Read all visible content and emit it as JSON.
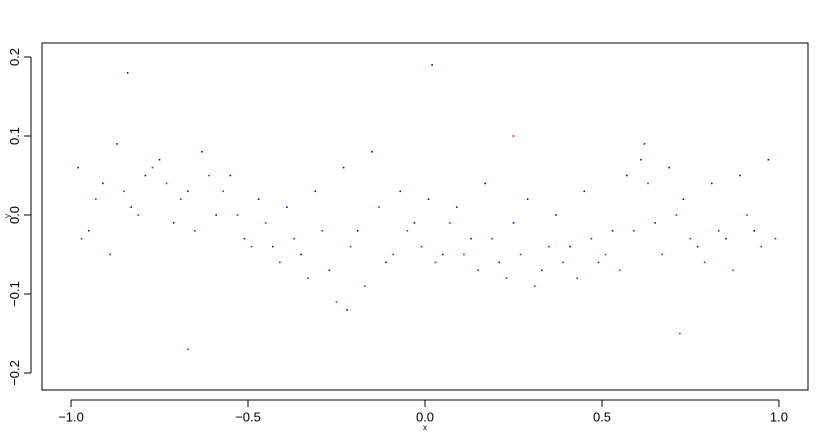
{
  "chart_data": {
    "type": "scatter",
    "xlabel": "x",
    "ylabel": "y",
    "xlim": [
      -1.082,
      1.082
    ],
    "ylim": [
      -0.2215,
      0.2177
    ],
    "xticks": [
      {
        "value": -1,
        "label": "−1.0"
      },
      {
        "value": -0.5,
        "label": "−0.5"
      },
      {
        "value": 0,
        "label": "0.0"
      },
      0.5,
      {
        "value": 1,
        "label": "1.0"
      }
    ],
    "yticks": [
      {
        "value": -0.2,
        "label": "−0.2"
      },
      {
        "value": -0.1,
        "label": "−0.1"
      },
      {
        "value": 0,
        "label": "0.0"
      },
      0.1,
      0.2
    ],
    "series": [
      {
        "color": "#0000ff",
        "x": [
          -0.98,
          -0.95,
          -0.91,
          -0.87,
          -0.83,
          -0.79,
          -0.75,
          -0.71,
          -0.67,
          -0.63,
          -0.59,
          -0.55,
          -0.51,
          -0.47,
          -0.43,
          -0.39,
          -0.35,
          -0.31,
          -0.27,
          -0.23,
          -0.19,
          -0.15,
          -0.11,
          -0.07,
          -0.03,
          0.01,
          0.05,
          0.09,
          0.13,
          0.17,
          0.21,
          0.25,
          0.29,
          0.33,
          0.37,
          0.41,
          0.45,
          0.49,
          0.53,
          0.57,
          0.61,
          0.65,
          0.69,
          0.73,
          0.77,
          0.81,
          0.85,
          0.89,
          0.93,
          0.97,
          -0.84,
          0.02,
          -0.22,
          0.62
        ],
        "values": [
          0.06,
          -0.02,
          0.04,
          0.09,
          0.01,
          0.05,
          0.07,
          -0.01,
          0.03,
          0.08,
          0.0,
          0.05,
          -0.03,
          0.02,
          -0.04,
          0.01,
          -0.05,
          0.03,
          -0.07,
          0.06,
          -0.02,
          0.08,
          -0.06,
          0.03,
          -0.01,
          0.02,
          -0.05,
          0.01,
          -0.03,
          0.04,
          -0.06,
          -0.01,
          0.02,
          -0.07,
          0.0,
          -0.04,
          0.03,
          -0.06,
          -0.02,
          0.05,
          0.07,
          -0.01,
          0.06,
          0.02,
          -0.04,
          0.04,
          -0.03,
          0.05,
          -0.02,
          0.07,
          0.18,
          0.19,
          -0.12,
          0.09
        ]
      },
      {
        "color": "#ff0000",
        "x": [
          -0.97,
          -0.93,
          -0.89,
          -0.85,
          -0.81,
          -0.77,
          -0.73,
          -0.69,
          -0.65,
          -0.61,
          -0.57,
          -0.53,
          -0.49,
          -0.45,
          -0.41,
          -0.37,
          -0.33,
          -0.29,
          -0.25,
          -0.21,
          -0.17,
          -0.13,
          -0.09,
          -0.05,
          -0.01,
          0.03,
          0.07,
          0.11,
          0.15,
          0.19,
          0.23,
          0.27,
          0.31,
          0.35,
          0.39,
          0.43,
          0.47,
          0.51,
          0.55,
          0.59,
          0.63,
          0.67,
          0.71,
          0.75,
          0.79,
          0.83,
          0.87,
          0.91,
          0.95,
          0.99,
          -0.67,
          0.25,
          0.72
        ],
        "values": [
          -0.03,
          0.02,
          -0.05,
          0.03,
          0.0,
          0.06,
          0.04,
          0.02,
          -0.02,
          0.05,
          0.03,
          0.0,
          -0.04,
          -0.01,
          -0.06,
          -0.03,
          -0.08,
          -0.02,
          -0.11,
          -0.04,
          -0.09,
          0.01,
          -0.05,
          -0.02,
          -0.04,
          -0.06,
          -0.01,
          -0.05,
          -0.07,
          -0.03,
          -0.08,
          -0.05,
          -0.09,
          -0.04,
          -0.06,
          -0.08,
          -0.03,
          -0.05,
          -0.07,
          -0.02,
          0.04,
          -0.05,
          0.0,
          -0.03,
          -0.06,
          -0.02,
          -0.07,
          0.0,
          -0.04,
          -0.03,
          -0.17,
          0.1,
          -0.15
        ]
      }
    ]
  }
}
